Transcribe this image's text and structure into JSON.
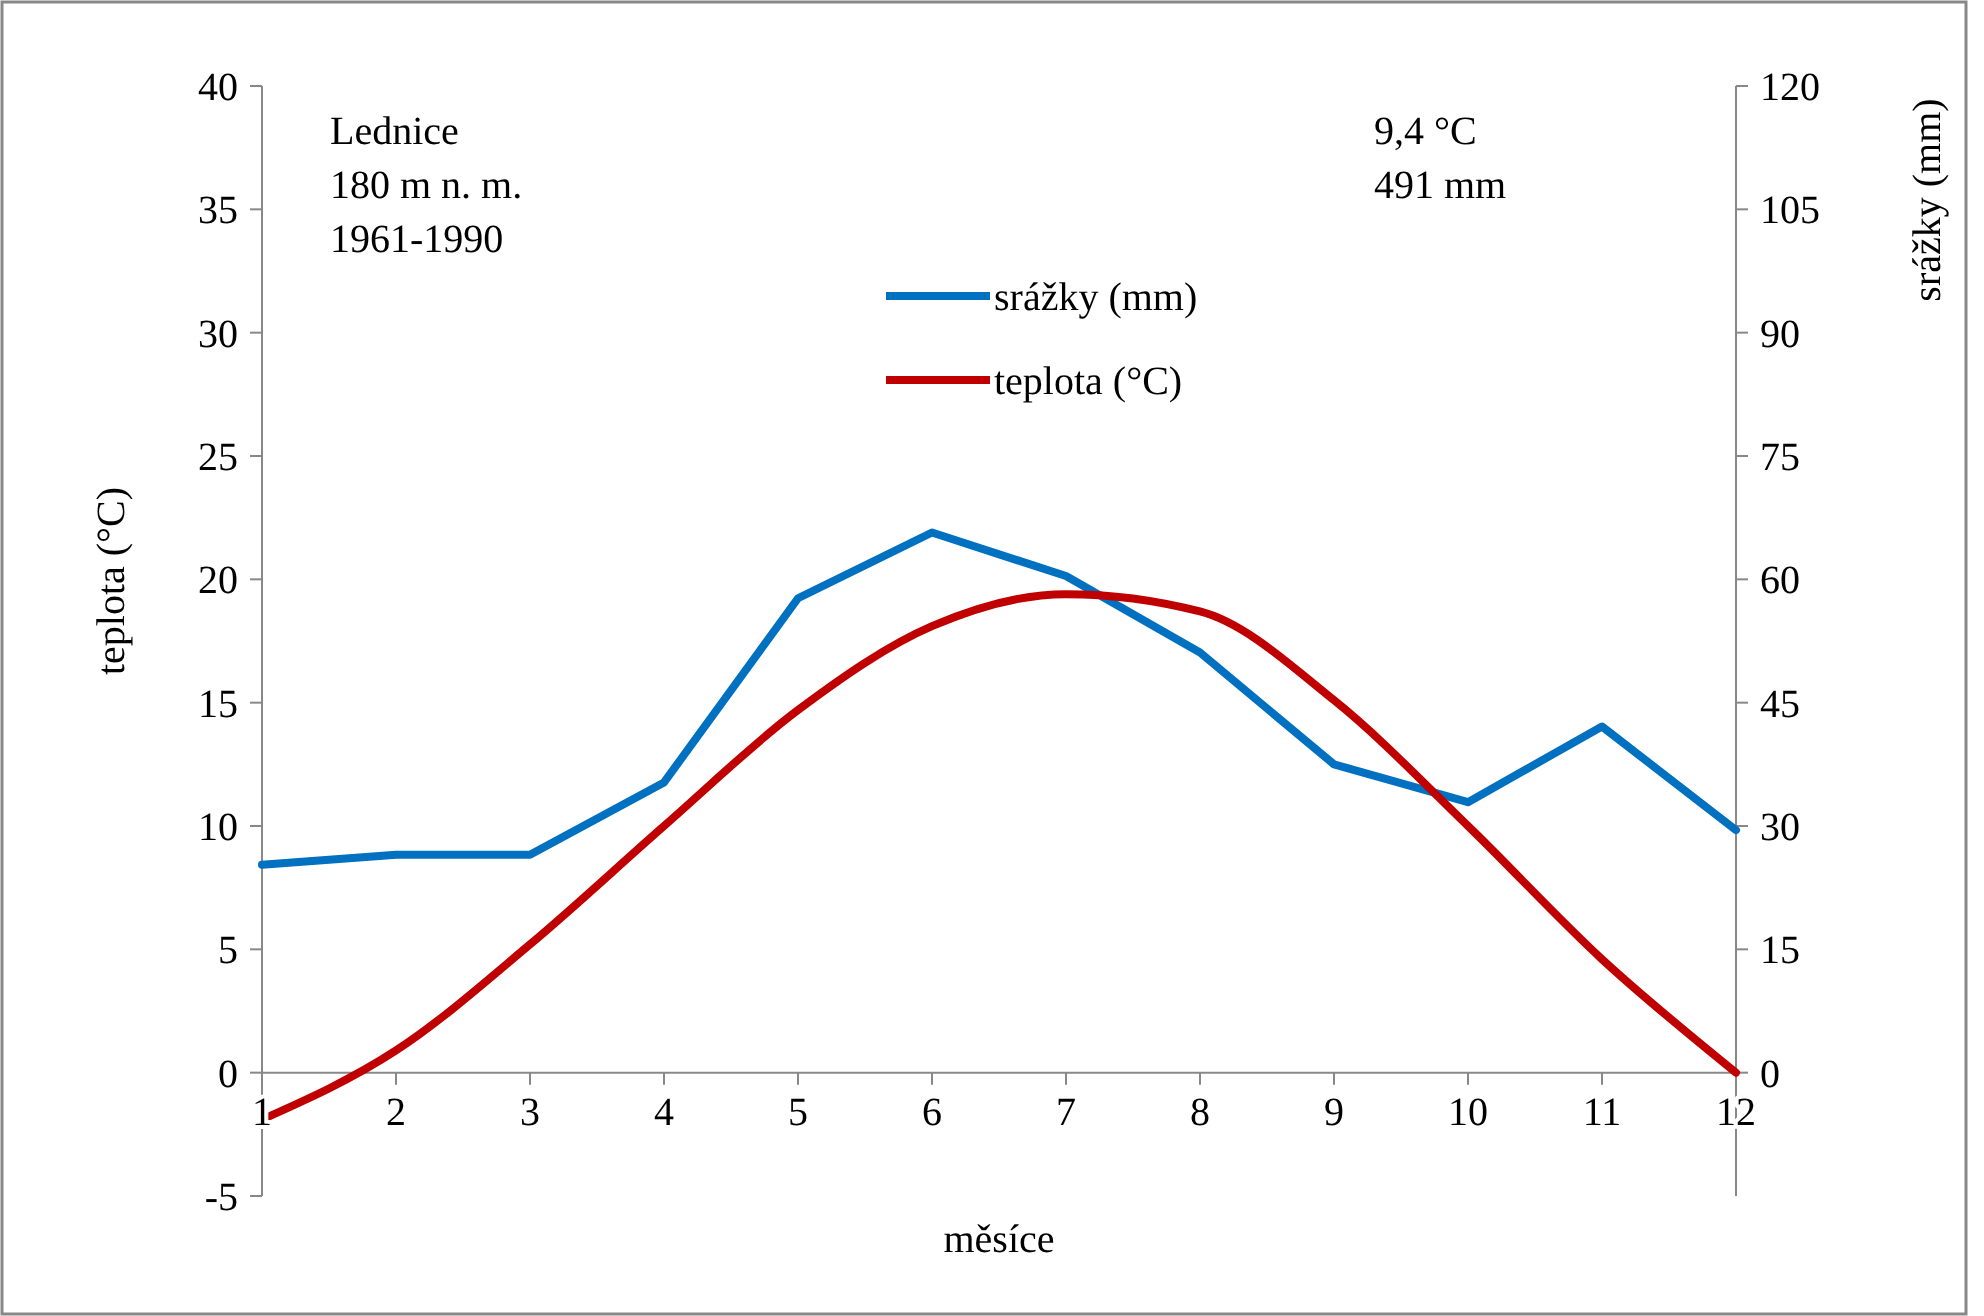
{
  "chart_data": {
    "type": "line",
    "xlabel": "měsíce",
    "ylabel": "teplota (°C)",
    "y2label": "srážky (mm)",
    "x": [
      1,
      2,
      3,
      4,
      5,
      6,
      7,
      8,
      9,
      10,
      11,
      12
    ],
    "xlim": [
      1,
      12
    ],
    "xticks": [
      1,
      2,
      3,
      4,
      5,
      6,
      7,
      8,
      9,
      10,
      11,
      12
    ],
    "ylim": [
      -5,
      40
    ],
    "yticks": [
      -5,
      0,
      5,
      10,
      15,
      20,
      25,
      30,
      35,
      40
    ],
    "y2lim": [
      -15,
      120
    ],
    "y2ticks": [
      0,
      15,
      30,
      45,
      60,
      75,
      90,
      105,
      120
    ],
    "series": [
      {
        "name": "srážky (mm)",
        "color": "#0070c0",
        "axis": "y2",
        "values": [
          25.3,
          26.5,
          26.5,
          35.3,
          57.7,
          65.7,
          60.4,
          51.1,
          37.5,
          32.9,
          42.1,
          29.5
        ]
      },
      {
        "name": "teplota (°C)",
        "color": "#c00000",
        "axis": "y",
        "values": [
          -1.9,
          0.9,
          5.2,
          10.0,
          14.7,
          18.1,
          19.4,
          18.7,
          15.1,
          10.0,
          4.6,
          0.0
        ]
      }
    ],
    "legend": "top",
    "grid": false,
    "marker": "none",
    "line_style": "solid",
    "annotations": [
      "Lednice",
      "180 m n. m.",
      "1961-1990",
      "9,4 °C",
      "491 mm"
    ]
  }
}
